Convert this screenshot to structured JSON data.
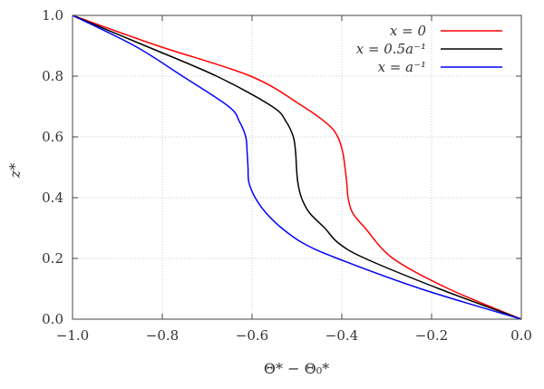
{
  "chart_data": {
    "type": "line",
    "xlabel": "Θ* − Θ₀*",
    "ylabel": "z*",
    "xlim": [
      -1.0,
      0.0
    ],
    "ylim": [
      0.0,
      1.0
    ],
    "grid": true,
    "legend_position": "top-right",
    "xticks": [
      "−1.0",
      "−0.8",
      "−0.6",
      "−0.4",
      "−0.2",
      "0.0"
    ],
    "xtick_values": [
      -1.0,
      -0.8,
      -0.6,
      -0.4,
      -0.2,
      0.0
    ],
    "yticks": [
      "0.0",
      "0.2",
      "0.4",
      "0.6",
      "0.8",
      "1.0"
    ],
    "ytick_values": [
      0.0,
      0.2,
      0.4,
      0.6,
      0.8,
      1.0
    ],
    "series": [
      {
        "name": "x = 0",
        "color": "#ff0000",
        "x": [
          -1.0,
          -0.81,
          -0.603,
          -0.486,
          -0.43,
          -0.409,
          -0.398,
          -0.393,
          -0.389,
          -0.386,
          -0.376,
          -0.348,
          -0.286,
          -0.162,
          0.0
        ],
        "y": [
          1.0,
          0.9,
          0.8,
          0.7,
          0.64,
          0.6,
          0.55,
          0.5,
          0.45,
          0.4,
          0.35,
          0.3,
          0.2,
          0.1,
          0.0
        ]
      },
      {
        "name": "x = 0.5a⁻¹",
        "color": "#000000",
        "x": [
          -1.0,
          -0.838,
          -0.679,
          -0.555,
          -0.524,
          -0.508,
          -0.503,
          -0.501,
          -0.498,
          -0.49,
          -0.472,
          -0.438,
          -0.407,
          -0.348,
          -0.183,
          0.0
        ],
        "y": [
          1.0,
          0.9,
          0.8,
          0.7,
          0.65,
          0.6,
          0.55,
          0.5,
          0.45,
          0.4,
          0.35,
          0.3,
          0.25,
          0.2,
          0.1,
          0.0
        ]
      },
      {
        "name": "x = a⁻¹",
        "color": "#0000ff",
        "x": [
          -1.0,
          -0.862,
          -0.755,
          -0.652,
          -0.628,
          -0.614,
          -0.611,
          -0.609,
          -0.607,
          -0.593,
          -0.569,
          -0.534,
          -0.486,
          -0.41,
          -0.224,
          0.0
        ],
        "y": [
          1.0,
          0.9,
          0.8,
          0.7,
          0.65,
          0.6,
          0.55,
          0.5,
          0.45,
          0.4,
          0.35,
          0.3,
          0.25,
          0.2,
          0.1,
          0.0
        ]
      }
    ]
  }
}
